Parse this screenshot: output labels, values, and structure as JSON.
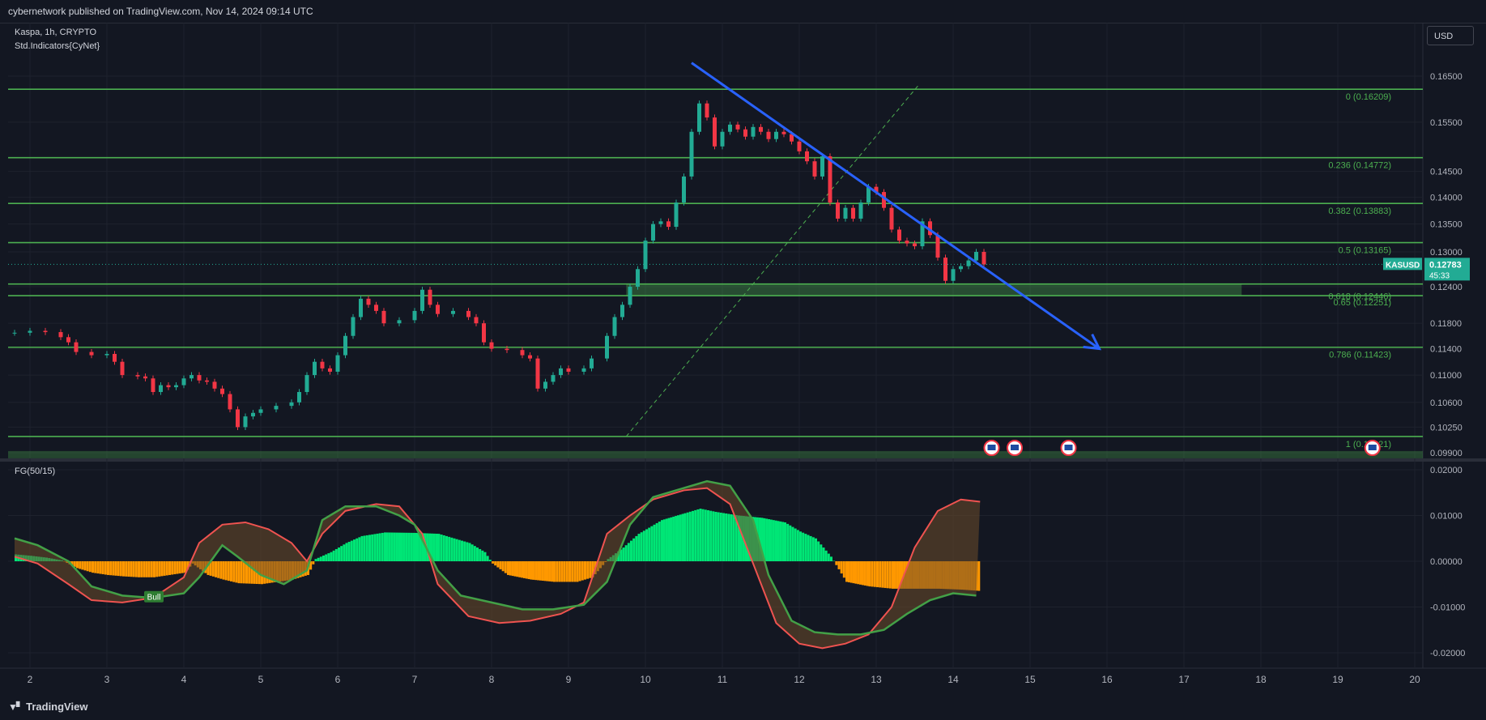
{
  "header": {
    "published": "cybernetwork published on TradingView.com, Nov 14, 2024 09:14 UTC"
  },
  "legend": {
    "symbol": "Kaspa, 1h, CRYPTO",
    "indicator": "Std.Indicators{CyNet}",
    "oscillator": "FG(50/15)"
  },
  "currency_button": "USD",
  "footer": {
    "brand": "TradingView"
  },
  "colors": {
    "bg": "#131722",
    "fib": "#4caf50",
    "trend": "#2962ff",
    "up": "#22ab94",
    "down": "#f23645",
    "osc_pos": "#00e676",
    "osc_neg": "#ff9800",
    "line_green": "#43a047",
    "line_red": "#ef5350"
  },
  "chart_data": [
    {
      "type": "line",
      "title": "Kaspa, 1h, CRYPTO",
      "price_axis": {
        "ticks": [
          "0.16500",
          "0.15500",
          "0.14500",
          "0.14000",
          "0.13500",
          "0.13000",
          "0.12400",
          "0.11800",
          "0.11400",
          "0.11000",
          "0.10600",
          "0.10250",
          "0.09900"
        ],
        "scale": "log"
      },
      "time_axis": {
        "ticks": [
          "2",
          "3",
          "4",
          "5",
          "6",
          "7",
          "8",
          "9",
          "10",
          "11",
          "12",
          "13",
          "14",
          "15",
          "16",
          "17",
          "18",
          "19",
          "20"
        ]
      },
      "fib_levels": [
        {
          "label": "0 (0.16209)",
          "value": 0.16209
        },
        {
          "label": "0.236 (0.14772)",
          "value": 0.14772
        },
        {
          "label": "0.382 (0.13883)",
          "value": 0.13883
        },
        {
          "label": "0.5 (0.13165)",
          "value": 0.13165
        },
        {
          "label": "0.618 (0.12446)",
          "value": 0.12446
        },
        {
          "label": "0.65 (0.12251)",
          "value": 0.12251
        },
        {
          "label": "0.786 (0.11423)",
          "value": 0.11423
        },
        {
          "label": "1 (0.10121)",
          "value": 0.10121
        }
      ],
      "last_price": {
        "symbol": "KASUSD",
        "value": "0.12783",
        "countdown": "45:33"
      },
      "close_series": [
        [
          1.8,
          0.1165
        ],
        [
          2.0,
          0.1168
        ],
        [
          2.2,
          0.1166
        ],
        [
          2.4,
          0.1158
        ],
        [
          2.5,
          0.115
        ],
        [
          2.6,
          0.1135
        ],
        [
          2.8,
          0.113
        ],
        [
          3.0,
          0.1132
        ],
        [
          3.1,
          0.112
        ],
        [
          3.2,
          0.11
        ],
        [
          3.4,
          0.1098
        ],
        [
          3.5,
          0.1095
        ],
        [
          3.6,
          0.1075
        ],
        [
          3.7,
          0.1085
        ],
        [
          3.8,
          0.1082
        ],
        [
          3.9,
          0.1085
        ],
        [
          4.0,
          0.1095
        ],
        [
          4.1,
          0.11
        ],
        [
          4.2,
          0.1092
        ],
        [
          4.3,
          0.109
        ],
        [
          4.4,
          0.108
        ],
        [
          4.5,
          0.1072
        ],
        [
          4.6,
          0.105
        ],
        [
          4.7,
          0.1025
        ],
        [
          4.8,
          0.104
        ],
        [
          4.9,
          0.1045
        ],
        [
          5.0,
          0.105
        ],
        [
          5.2,
          0.1055
        ],
        [
          5.4,
          0.106
        ],
        [
          5.5,
          0.1075
        ],
        [
          5.6,
          0.11
        ],
        [
          5.7,
          0.112
        ],
        [
          5.8,
          0.111
        ],
        [
          5.9,
          0.1105
        ],
        [
          6.0,
          0.113
        ],
        [
          6.1,
          0.116
        ],
        [
          6.2,
          0.119
        ],
        [
          6.3,
          0.122
        ],
        [
          6.4,
          0.121
        ],
        [
          6.5,
          0.12
        ],
        [
          6.6,
          0.118
        ],
        [
          6.8,
          0.1185
        ],
        [
          7.0,
          0.12
        ],
        [
          7.1,
          0.1235
        ],
        [
          7.2,
          0.121
        ],
        [
          7.3,
          0.1195
        ],
        [
          7.5,
          0.12
        ],
        [
          7.7,
          0.119
        ],
        [
          7.8,
          0.118
        ],
        [
          7.9,
          0.115
        ],
        [
          8.0,
          0.114
        ],
        [
          8.2,
          0.1138
        ],
        [
          8.4,
          0.113
        ],
        [
          8.5,
          0.1125
        ],
        [
          8.6,
          0.108
        ],
        [
          8.7,
          0.109
        ],
        [
          8.8,
          0.11
        ],
        [
          8.9,
          0.111
        ],
        [
          9.0,
          0.1105
        ],
        [
          9.2,
          0.111
        ],
        [
          9.3,
          0.1125
        ],
        [
          9.5,
          0.116
        ],
        [
          9.6,
          0.119
        ],
        [
          9.7,
          0.121
        ],
        [
          9.8,
          0.124
        ],
        [
          9.9,
          0.127
        ],
        [
          10.0,
          0.132
        ],
        [
          10.1,
          0.135
        ],
        [
          10.2,
          0.1355
        ],
        [
          10.3,
          0.1345
        ],
        [
          10.4,
          0.139
        ],
        [
          10.5,
          0.144
        ],
        [
          10.6,
          0.153
        ],
        [
          10.7,
          0.159
        ],
        [
          10.8,
          0.156
        ],
        [
          10.9,
          0.15
        ],
        [
          11.0,
          0.153
        ],
        [
          11.1,
          0.1545
        ],
        [
          11.2,
          0.1535
        ],
        [
          11.3,
          0.152
        ],
        [
          11.4,
          0.154
        ],
        [
          11.5,
          0.153
        ],
        [
          11.6,
          0.1515
        ],
        [
          11.7,
          0.153
        ],
        [
          11.8,
          0.1525
        ],
        [
          11.9,
          0.151
        ],
        [
          12.0,
          0.149
        ],
        [
          12.1,
          0.147
        ],
        [
          12.2,
          0.144
        ],
        [
          12.3,
          0.148
        ],
        [
          12.4,
          0.139
        ],
        [
          12.5,
          0.136
        ],
        [
          12.6,
          0.138
        ],
        [
          12.7,
          0.136
        ],
        [
          12.8,
          0.139
        ],
        [
          12.9,
          0.142
        ],
        [
          13.0,
          0.141
        ],
        [
          13.1,
          0.138
        ],
        [
          13.2,
          0.134
        ],
        [
          13.3,
          0.132
        ],
        [
          13.4,
          0.1315
        ],
        [
          13.5,
          0.131
        ],
        [
          13.6,
          0.1355
        ],
        [
          13.7,
          0.133
        ],
        [
          13.8,
          0.129
        ],
        [
          13.9,
          0.125
        ],
        [
          14.0,
          0.127
        ],
        [
          14.1,
          0.1275
        ],
        [
          14.2,
          0.1285
        ],
        [
          14.3,
          0.13
        ],
        [
          14.4,
          0.1278
        ]
      ],
      "trendline": {
        "start": [
          10.6,
          0.168
        ],
        "end": [
          15.9,
          0.114
        ]
      },
      "dashed_line": {
        "start": [
          9.75,
          0.1012
        ],
        "end": [
          13.55,
          0.163
        ]
      }
    },
    {
      "type": "area",
      "title": "FG(50/15)",
      "y_axis": {
        "ticks": [
          "0.02000",
          "0.01000",
          "0.00000",
          "-0.01000",
          "-0.02000"
        ]
      },
      "histogram": [
        [
          1.8,
          0.0015
        ],
        [
          2.0,
          0.0012
        ],
        [
          2.2,
          0.0008
        ],
        [
          2.4,
          0.0002
        ],
        [
          2.6,
          -0.0015
        ],
        [
          2.8,
          -0.0025
        ],
        [
          3.0,
          -0.003
        ],
        [
          3.2,
          -0.0033
        ],
        [
          3.4,
          -0.0035
        ],
        [
          3.6,
          -0.0035
        ],
        [
          3.8,
          -0.003
        ],
        [
          4.0,
          -0.0025
        ],
        [
          4.1,
          -0.0005
        ],
        [
          4.3,
          -0.003
        ],
        [
          4.5,
          -0.004
        ],
        [
          4.7,
          -0.0048
        ],
        [
          5.0,
          -0.005
        ],
        [
          5.2,
          -0.0045
        ],
        [
          5.4,
          -0.004
        ],
        [
          5.6,
          -0.003
        ],
        [
          5.7,
          0.0005
        ],
        [
          5.9,
          0.002
        ],
        [
          6.1,
          0.004
        ],
        [
          6.3,
          0.0055
        ],
        [
          6.6,
          0.0063
        ],
        [
          7.0,
          0.0062
        ],
        [
          7.3,
          0.006
        ],
        [
          7.5,
          0.005
        ],
        [
          7.7,
          0.004
        ],
        [
          7.9,
          0.002
        ],
        [
          8.0,
          -0.0005
        ],
        [
          8.2,
          -0.003
        ],
        [
          8.5,
          -0.004
        ],
        [
          8.8,
          -0.0045
        ],
        [
          9.1,
          -0.0045
        ],
        [
          9.3,
          -0.0035
        ],
        [
          9.5,
          0.0005
        ],
        [
          9.7,
          0.003
        ],
        [
          9.9,
          0.006
        ],
        [
          10.2,
          0.009
        ],
        [
          10.5,
          0.0105
        ],
        [
          10.7,
          0.0115
        ],
        [
          10.9,
          0.0108
        ],
        [
          11.2,
          0.01
        ],
        [
          11.5,
          0.0095
        ],
        [
          11.8,
          0.0085
        ],
        [
          12.0,
          0.0065
        ],
        [
          12.2,
          0.005
        ],
        [
          12.4,
          0.001
        ],
        [
          12.6,
          -0.0045
        ],
        [
          12.9,
          -0.0055
        ],
        [
          13.2,
          -0.006
        ],
        [
          13.5,
          -0.006
        ],
        [
          13.8,
          -0.006
        ],
        [
          14.1,
          -0.0062
        ],
        [
          14.35,
          -0.0065
        ]
      ],
      "green_line": [
        [
          1.8,
          0.005
        ],
        [
          2.1,
          0.0035
        ],
        [
          2.5,
          0.0
        ],
        [
          2.8,
          -0.0055
        ],
        [
          3.2,
          -0.0075
        ],
        [
          3.6,
          -0.008
        ],
        [
          4.0,
          -0.007
        ],
        [
          4.2,
          -0.0035
        ],
        [
          4.5,
          0.0035
        ],
        [
          4.7,
          0.001
        ],
        [
          5.0,
          -0.003
        ],
        [
          5.3,
          -0.005
        ],
        [
          5.6,
          -0.002
        ],
        [
          5.8,
          0.009
        ],
        [
          6.1,
          0.012
        ],
        [
          6.5,
          0.012
        ],
        [
          6.8,
          0.01
        ],
        [
          7.0,
          0.008
        ],
        [
          7.3,
          -0.002
        ],
        [
          7.6,
          -0.0075
        ],
        [
          8.0,
          -0.009
        ],
        [
          8.4,
          -0.0105
        ],
        [
          8.8,
          -0.0105
        ],
        [
          9.2,
          -0.0095
        ],
        [
          9.5,
          -0.0045
        ],
        [
          9.8,
          0.008
        ],
        [
          10.1,
          0.014
        ],
        [
          10.5,
          0.016
        ],
        [
          10.8,
          0.0175
        ],
        [
          11.1,
          0.0165
        ],
        [
          11.4,
          0.009
        ],
        [
          11.6,
          -0.003
        ],
        [
          11.9,
          -0.013
        ],
        [
          12.2,
          -0.0155
        ],
        [
          12.5,
          -0.016
        ],
        [
          12.8,
          -0.016
        ],
        [
          13.1,
          -0.015
        ],
        [
          13.4,
          -0.0115
        ],
        [
          13.7,
          -0.0085
        ],
        [
          14.0,
          -0.007
        ],
        [
          14.3,
          -0.0075
        ]
      ],
      "red_line": [
        [
          1.8,
          0.001
        ],
        [
          2.1,
          -0.0005
        ],
        [
          2.5,
          -0.005
        ],
        [
          2.8,
          -0.0085
        ],
        [
          3.2,
          -0.009
        ],
        [
          3.6,
          -0.008
        ],
        [
          4.0,
          -0.0035
        ],
        [
          4.2,
          0.004
        ],
        [
          4.5,
          0.008
        ],
        [
          4.8,
          0.0085
        ],
        [
          5.1,
          0.007
        ],
        [
          5.4,
          0.004
        ],
        [
          5.6,
          0.0
        ],
        [
          5.8,
          0.006
        ],
        [
          6.1,
          0.011
        ],
        [
          6.5,
          0.0125
        ],
        [
          6.8,
          0.012
        ],
        [
          7.1,
          0.006
        ],
        [
          7.3,
          -0.005
        ],
        [
          7.7,
          -0.012
        ],
        [
          8.1,
          -0.0135
        ],
        [
          8.5,
          -0.013
        ],
        [
          8.9,
          -0.0115
        ],
        [
          9.2,
          -0.009
        ],
        [
          9.5,
          0.006
        ],
        [
          9.8,
          0.01
        ],
        [
          10.1,
          0.0135
        ],
        [
          10.5,
          0.0155
        ],
        [
          10.8,
          0.016
        ],
        [
          11.1,
          0.0125
        ],
        [
          11.4,
          -0.0005
        ],
        [
          11.7,
          -0.0135
        ],
        [
          12.0,
          -0.018
        ],
        [
          12.3,
          -0.019
        ],
        [
          12.6,
          -0.018
        ],
        [
          12.9,
          -0.016
        ],
        [
          13.2,
          -0.01
        ],
        [
          13.5,
          0.003
        ],
        [
          13.8,
          0.011
        ],
        [
          14.1,
          0.0135
        ],
        [
          14.35,
          0.013
        ]
      ],
      "label": "Bull"
    }
  ]
}
